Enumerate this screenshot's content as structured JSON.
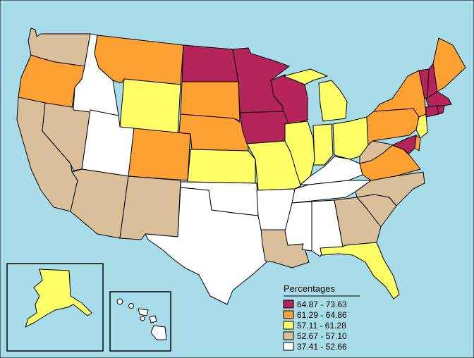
{
  "colors": {
    "water": "#a8dce8",
    "range_1": "#b5245a",
    "range_2": "#ffa033",
    "range_3": "#ffff66",
    "range_4": "#d9bf9a",
    "range_5": "#ffffff"
  },
  "legend": {
    "title": "Percentages",
    "items": [
      {
        "label": "64.87 - 73.63",
        "color": "#b5245a"
      },
      {
        "label": "61.29 - 64.86",
        "color": "#ffa033"
      },
      {
        "label": "57.11 - 61.28",
        "color": "#ffff66"
      },
      {
        "label": "52.67 - 57.10",
        "color": "#d9bf9a"
      },
      {
        "label": "37.41 - 52.66",
        "color": "#ffffff"
      }
    ]
  },
  "states": {
    "WA": 4,
    "OR": 2,
    "CA": 4,
    "NV": 4,
    "ID": 5,
    "MT": 2,
    "WY": 3,
    "UT": 5,
    "AZ": 4,
    "CO": 2,
    "NM": 4,
    "ND": 1,
    "SD": 2,
    "NE": 2,
    "KS": 3,
    "OK": 5,
    "TX": 5,
    "MN": 1,
    "IA": 1,
    "MO": 3,
    "AR": 5,
    "LA": 4,
    "WI": 1,
    "IL": 3,
    "MI": 3,
    "IN": 3,
    "OH": 3,
    "KY": 5,
    "TN": 5,
    "MS": 5,
    "AL": 5,
    "GA": 4,
    "FL": 3,
    "SC": 4,
    "NC": 4,
    "VA": 2,
    "WV": 4,
    "PA": 2,
    "NY": 2,
    "VT": 1,
    "NH": 1,
    "ME": 2,
    "MA": 1,
    "CT": 1,
    "RI": 1,
    "NJ": 3,
    "DE": 2,
    "MD": 1,
    "AK": 3,
    "HI": 5
  }
}
